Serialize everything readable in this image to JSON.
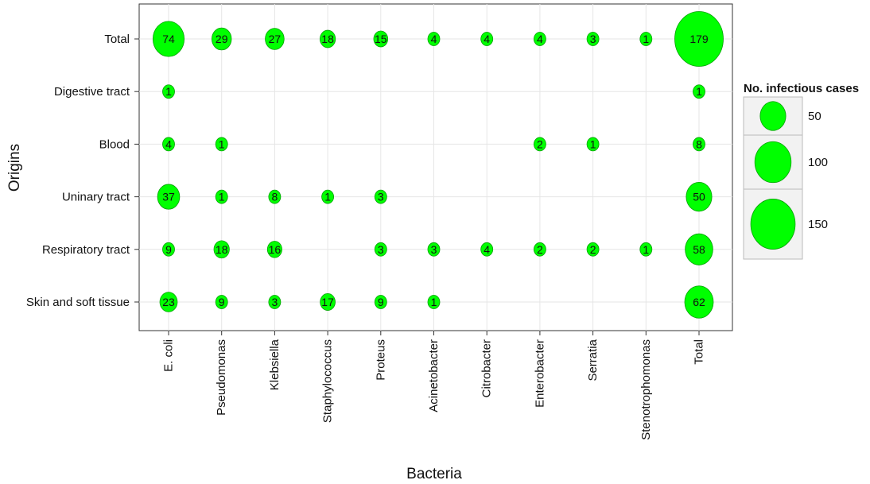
{
  "chart_data": {
    "type": "bubble",
    "xlabel": "Bacteria",
    "ylabel": "Origins",
    "x_categories": [
      "E. coli",
      "Pseudomonas",
      "Klebsiella",
      "Staphylococcus",
      "Proteus",
      "Acinetobacter",
      "Citrobacter",
      "Enterobacter",
      "Serratia",
      "Stenotrophomonas",
      "Total"
    ],
    "y_categories": [
      "Total",
      "Digestive tract",
      "Blood",
      "Uninary tract",
      "Respiratory tract",
      "Skin and soft tissue"
    ],
    "points": [
      {
        "x": "E. coli",
        "y": "Total",
        "value": 74
      },
      {
        "x": "Pseudomonas",
        "y": "Total",
        "value": 29
      },
      {
        "x": "Klebsiella",
        "y": "Total",
        "value": 27
      },
      {
        "x": "Staphylococcus",
        "y": "Total",
        "value": 18
      },
      {
        "x": "Proteus",
        "y": "Total",
        "value": 15
      },
      {
        "x": "Acinetobacter",
        "y": "Total",
        "value": 4
      },
      {
        "x": "Citrobacter",
        "y": "Total",
        "value": 4
      },
      {
        "x": "Enterobacter",
        "y": "Total",
        "value": 4
      },
      {
        "x": "Serratia",
        "y": "Total",
        "value": 3
      },
      {
        "x": "Stenotrophomonas",
        "y": "Total",
        "value": 1
      },
      {
        "x": "Total",
        "y": "Total",
        "value": 179
      },
      {
        "x": "E. coli",
        "y": "Digestive tract",
        "value": 1
      },
      {
        "x": "Total",
        "y": "Digestive tract",
        "value": 1
      },
      {
        "x": "E. coli",
        "y": "Blood",
        "value": 4
      },
      {
        "x": "Pseudomonas",
        "y": "Blood",
        "value": 1
      },
      {
        "x": "Enterobacter",
        "y": "Blood",
        "value": 2
      },
      {
        "x": "Serratia",
        "y": "Blood",
        "value": 1
      },
      {
        "x": "Total",
        "y": "Blood",
        "value": 8
      },
      {
        "x": "E. coli",
        "y": "Uninary tract",
        "value": 37
      },
      {
        "x": "Pseudomonas",
        "y": "Uninary tract",
        "value": 1
      },
      {
        "x": "Klebsiella",
        "y": "Uninary tract",
        "value": 8
      },
      {
        "x": "Staphylococcus",
        "y": "Uninary tract",
        "value": 1
      },
      {
        "x": "Proteus",
        "y": "Uninary tract",
        "value": 3
      },
      {
        "x": "Total",
        "y": "Uninary tract",
        "value": 50
      },
      {
        "x": "E. coli",
        "y": "Respiratory tract",
        "value": 9
      },
      {
        "x": "Pseudomonas",
        "y": "Respiratory tract",
        "value": 18
      },
      {
        "x": "Klebsiella",
        "y": "Respiratory tract",
        "value": 16
      },
      {
        "x": "Proteus",
        "y": "Respiratory tract",
        "value": 3
      },
      {
        "x": "Acinetobacter",
        "y": "Respiratory tract",
        "value": 3
      },
      {
        "x": "Citrobacter",
        "y": "Respiratory tract",
        "value": 4
      },
      {
        "x": "Enterobacter",
        "y": "Respiratory tract",
        "value": 2
      },
      {
        "x": "Serratia",
        "y": "Respiratory tract",
        "value": 2
      },
      {
        "x": "Stenotrophomonas",
        "y": "Respiratory tract",
        "value": 1
      },
      {
        "x": "Total",
        "y": "Respiratory tract",
        "value": 58
      },
      {
        "x": "E. coli",
        "y": "Skin and soft tissue",
        "value": 23
      },
      {
        "x": "Pseudomonas",
        "y": "Skin and soft tissue",
        "value": 9
      },
      {
        "x": "Klebsiella",
        "y": "Skin and soft tissue",
        "value": 3
      },
      {
        "x": "Staphylococcus",
        "y": "Skin and soft tissue",
        "value": 17
      },
      {
        "x": "Proteus",
        "y": "Skin and soft tissue",
        "value": 9
      },
      {
        "x": "Acinetobacter",
        "y": "Skin and soft tissue",
        "value": 1
      },
      {
        "x": "Total",
        "y": "Skin and soft tissue",
        "value": 62
      }
    ],
    "legend": {
      "title": "No. infectious cases",
      "entries": [
        50,
        100,
        150
      ],
      "placement": "right"
    },
    "bubble_color": "#00ff00",
    "bubble_outline": "#00a000",
    "grid": true
  }
}
